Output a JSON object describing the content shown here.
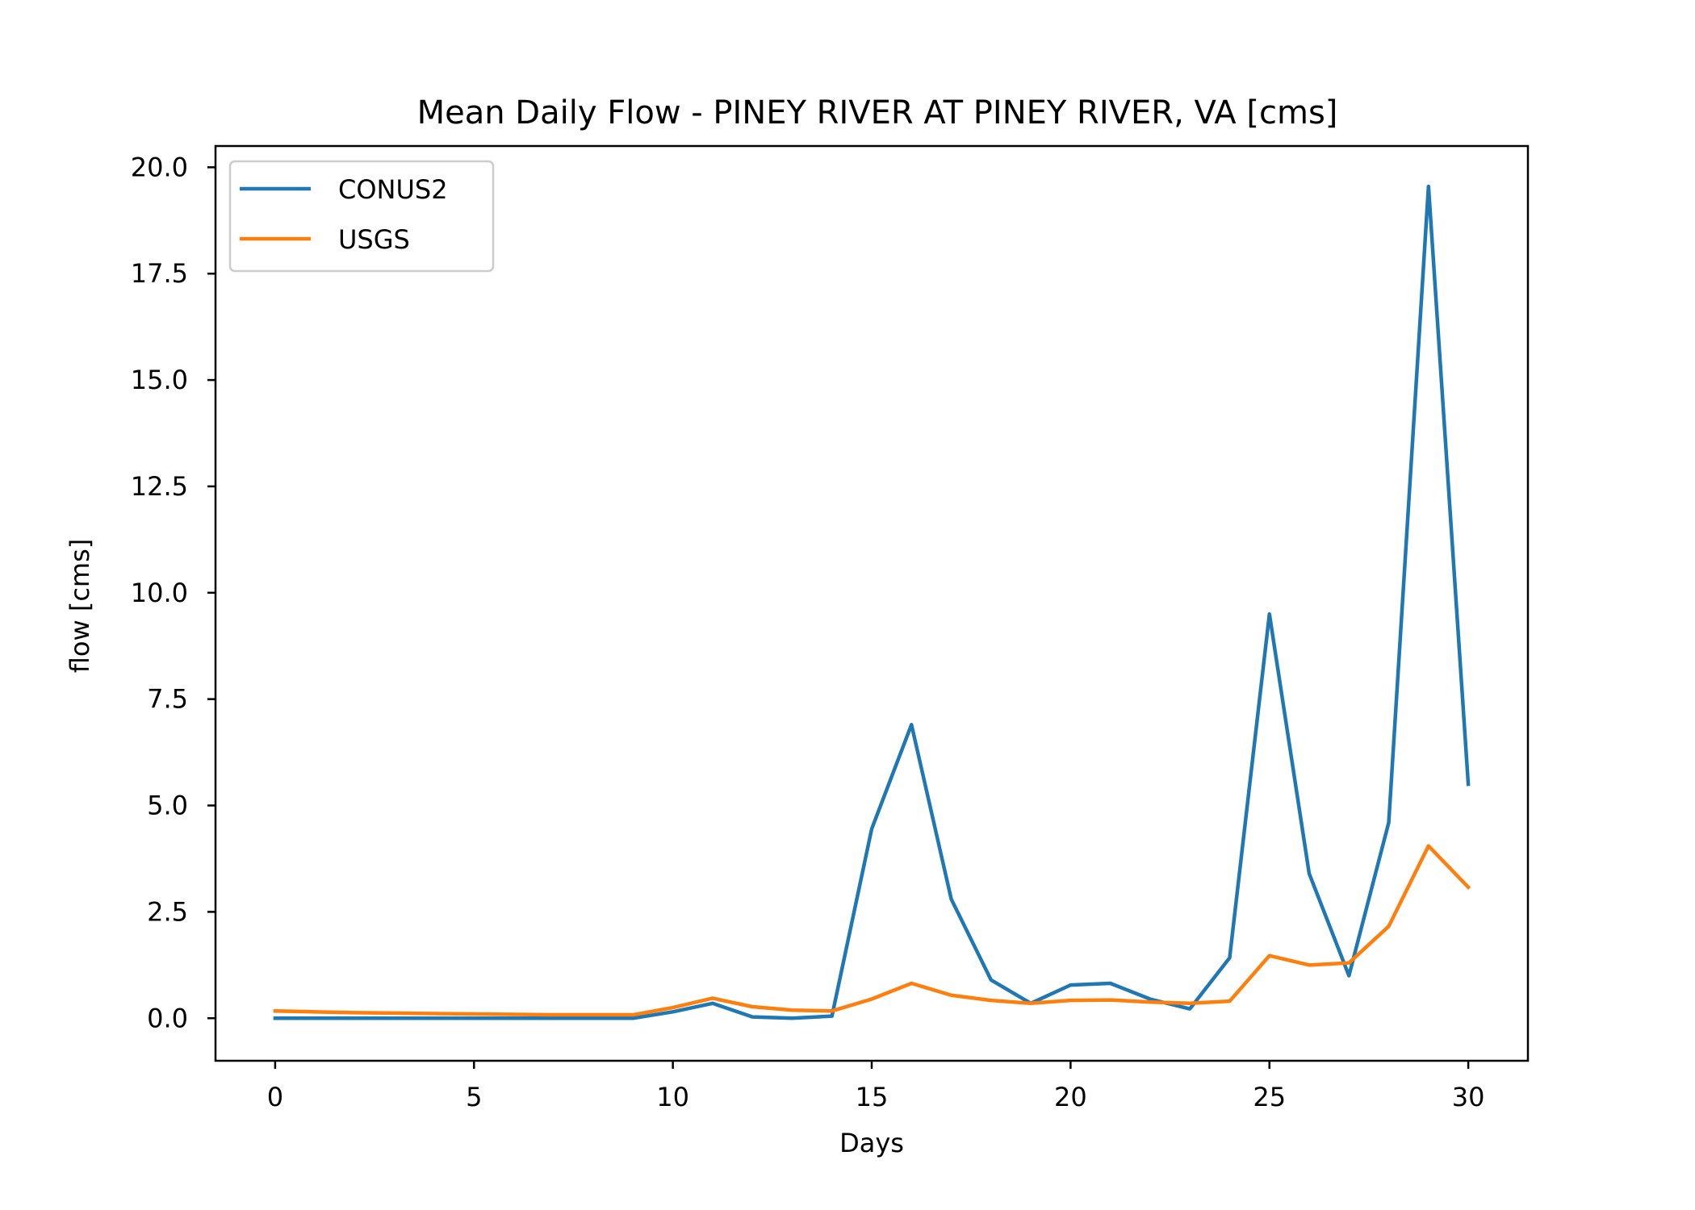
{
  "chart_data": {
    "type": "line",
    "title": "Mean Daily Flow - PINEY RIVER AT PINEY RIVER, VA [cms]",
    "xlabel": "Days",
    "ylabel": "flow [cms]",
    "xlim": [
      -1.5,
      31.5
    ],
    "ylim": [
      -1.0,
      20.5
    ],
    "x_ticks": [
      0,
      5,
      10,
      15,
      20,
      25,
      30
    ],
    "y_ticks": [
      0.0,
      2.5,
      5.0,
      7.5,
      10.0,
      12.5,
      15.0,
      17.5,
      20.0
    ],
    "x_tick_labels": [
      "0",
      "5",
      "10",
      "15",
      "20",
      "25",
      "30"
    ],
    "y_tick_labels": [
      "0.0",
      "2.5",
      "5.0",
      "7.5",
      "10.0",
      "12.5",
      "15.0",
      "17.5",
      "20.0"
    ],
    "grid": false,
    "legend_position": "upper left",
    "x": [
      0,
      1,
      2,
      3,
      4,
      5,
      6,
      7,
      8,
      9,
      10,
      11,
      12,
      13,
      14,
      15,
      16,
      17,
      18,
      19,
      20,
      21,
      22,
      23,
      24,
      25,
      26,
      27,
      28,
      29,
      30
    ],
    "series": [
      {
        "name": "CONUS2",
        "color": "#1f77b4",
        "values": [
          0.0,
          0.0,
          0.0,
          0.0,
          0.0,
          0.0,
          0.0,
          0.0,
          0.0,
          0.0,
          0.15,
          0.35,
          0.03,
          0.0,
          0.05,
          4.45,
          6.9,
          2.8,
          0.9,
          0.35,
          0.78,
          0.82,
          0.45,
          0.22,
          1.42,
          9.5,
          3.4,
          1.0,
          4.6,
          19.55,
          5.5
        ]
      },
      {
        "name": "USGS",
        "color": "#ff7f0e",
        "values": [
          0.17,
          0.15,
          0.13,
          0.12,
          0.11,
          0.1,
          0.09,
          0.08,
          0.08,
          0.08,
          0.25,
          0.47,
          0.27,
          0.19,
          0.17,
          0.45,
          0.82,
          0.54,
          0.42,
          0.35,
          0.42,
          0.43,
          0.38,
          0.35,
          0.4,
          1.47,
          1.25,
          1.3,
          2.16,
          4.05,
          3.08
        ]
      }
    ]
  }
}
